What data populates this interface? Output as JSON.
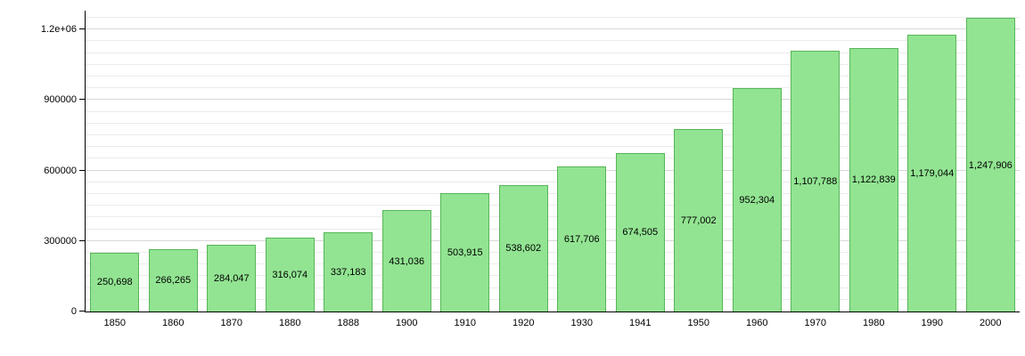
{
  "chart_data": {
    "type": "bar",
    "title": "",
    "xlabel": "",
    "ylabel": "",
    "categories": [
      "1850",
      "1860",
      "1870",
      "1880",
      "1888",
      "1900",
      "1910",
      "1920",
      "1930",
      "1941",
      "1950",
      "1960",
      "1970",
      "1980",
      "1990",
      "2000"
    ],
    "values": [
      250698,
      266265,
      284047,
      316074,
      337183,
      431036,
      503915,
      538602,
      617706,
      674505,
      777002,
      952304,
      1107788,
      1122839,
      1179044,
      1247906
    ],
    "value_labels": [
      "250,698",
      "266,265",
      "284,047",
      "316,074",
      "337,183",
      "431,036",
      "503,915",
      "538,602",
      "617,706",
      "674,505",
      "777,002",
      "952,304",
      "1,107,788",
      "1,122,839",
      "1,179,044",
      "1,247,906"
    ],
    "ylim": [
      0,
      1280000
    ],
    "yticks": [
      {
        "value": 0,
        "label": "0"
      },
      {
        "value": 300000,
        "label": "300000"
      },
      {
        "value": 600000,
        "label": "600000"
      },
      {
        "value": 900000,
        "label": "900000"
      },
      {
        "value": 1200000,
        "label": "1.2e+06"
      }
    ],
    "minor_grid_step": 50000,
    "grid": true,
    "legend": "none",
    "bar_fill_color": "#92e492",
    "bar_border_color": "#57b657",
    "axis_color": "#000000"
  }
}
